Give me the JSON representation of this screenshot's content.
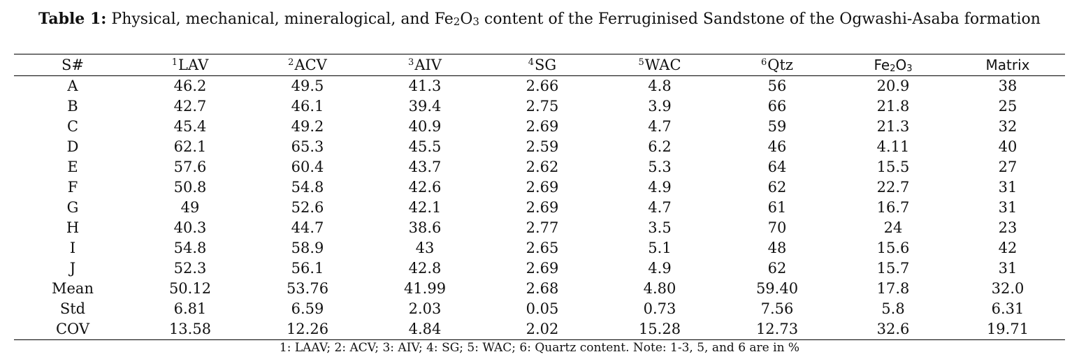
{
  "caption": {
    "lead": "Table 1:",
    "text_a": " Physical, mechanical, mineralogical, and Fe",
    "sub1": "2",
    "text_b": "O",
    "sub2": "3",
    "text_c": " content of the Ferruginised Sandstone of the Ogwashi-Asaba formation"
  },
  "columns": [
    {
      "sup": "",
      "label": "S#"
    },
    {
      "sup": "1",
      "label": "LAV"
    },
    {
      "sup": "2",
      "label": "ACV"
    },
    {
      "sup": "3",
      "label": "AIV"
    },
    {
      "sup": "4",
      "label": "SG"
    },
    {
      "sup": "5",
      "label": "WAC"
    },
    {
      "sup": "6",
      "label": "Qtz"
    },
    {
      "label_a": "Fe",
      "sub1": "2",
      "label_b": "O",
      "sub2": "3"
    },
    {
      "sup": "",
      "label": "Matrix"
    }
  ],
  "rows": [
    [
      "A",
      "46.2",
      "49.5",
      "41.3",
      "2.66",
      "4.8",
      "56",
      "20.9",
      "38"
    ],
    [
      "B",
      "42.7",
      "46.1",
      "39.4",
      "2.75",
      "3.9",
      "66",
      "21.8",
      "25"
    ],
    [
      "C",
      "45.4",
      "49.2",
      "40.9",
      "2.69",
      "4.7",
      "59",
      "21.3",
      "32"
    ],
    [
      "D",
      "62.1",
      "65.3",
      "45.5",
      "2.59",
      "6.2",
      "46",
      "4.11",
      "40"
    ],
    [
      "E",
      "57.6",
      "60.4",
      "43.7",
      "2.62",
      "5.3",
      "64",
      "15.5",
      "27"
    ],
    [
      "F",
      "50.8",
      "54.8",
      "42.6",
      "2.69",
      "4.9",
      "62",
      "22.7",
      "31"
    ],
    [
      "G",
      "49",
      "52.6",
      "42.1",
      "2.69",
      "4.7",
      "61",
      "16.7",
      "31"
    ],
    [
      "H",
      "40.3",
      "44.7",
      "38.6",
      "2.77",
      "3.5",
      "70",
      "24",
      "23"
    ],
    [
      "I",
      "54.8",
      "58.9",
      "43",
      "2.65",
      "5.1",
      "48",
      "15.6",
      "42"
    ],
    [
      "J",
      "52.3",
      "56.1",
      "42.8",
      "2.69",
      "4.9",
      "62",
      "15.7",
      "31"
    ],
    [
      "Mean",
      "50.12",
      "53.76",
      "41.99",
      "2.68",
      "4.80",
      "59.40",
      "17.8",
      "32.0"
    ],
    [
      "Std",
      "6.81",
      "6.59",
      "2.03",
      "0.05",
      "0.73",
      "7.56",
      "5.8",
      "6.31"
    ],
    [
      "COV",
      "13.58",
      "12.26",
      "4.84",
      "2.02",
      "15.28",
      "12.73",
      "32.6",
      "19.71"
    ]
  ],
  "footnote": "1: LAAV; 2: ACV; 3: AIV; 4: SG; 5: WAC; 6: Quartz content. Note: 1-3, 5, and 6 are in %"
}
